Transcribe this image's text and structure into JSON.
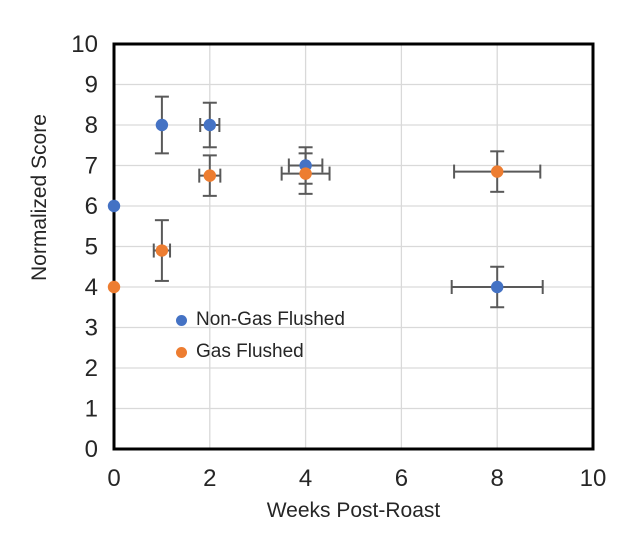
{
  "page": {
    "background": "#ffffff"
  },
  "chart_data": {
    "type": "scatter",
    "title": "",
    "xlabel": "Weeks Post-Roast",
    "ylabel": "Normalized Score",
    "xlim": [
      0,
      10
    ],
    "ylim": [
      0,
      10
    ],
    "xticks": [
      0,
      2,
      4,
      6,
      8,
      10
    ],
    "yticks": [
      0,
      1,
      2,
      3,
      4,
      5,
      6,
      7,
      8,
      9,
      10
    ],
    "grid": true,
    "plot_border": true,
    "legend_position": "inside lower-left",
    "colors": {
      "grid": "#d9d9d9",
      "plot_border": "#000000",
      "error_bar": "#595959",
      "text": "#262626"
    },
    "series": [
      {
        "name": "Non-Gas Flushed",
        "color": "#4472C4",
        "points": [
          {
            "x": 0,
            "y": 6
          },
          {
            "x": 1,
            "y": 8,
            "yerr": 0.7
          },
          {
            "x": 2,
            "y": 8,
            "xerr": 0.2,
            "yerr": 0.55
          },
          {
            "x": 4,
            "y": 7,
            "xerr": 0.35,
            "yerr": 0.45
          },
          {
            "x": 8,
            "y": 4,
            "xerr": 0.95,
            "yerr": 0.5
          }
        ]
      },
      {
        "name": "Gas Flushed",
        "color": "#ED7D31",
        "points": [
          {
            "x": 0,
            "y": 4
          },
          {
            "x": 1,
            "y": 4.9,
            "xerr": 0.17,
            "yerr": 0.75
          },
          {
            "x": 2,
            "y": 6.75,
            "xerr": 0.22,
            "yerr": 0.5
          },
          {
            "x": 4,
            "y": 6.8,
            "xerr": 0.5,
            "yerr": 0.5
          },
          {
            "x": 8,
            "y": 6.85,
            "xerr": 0.9,
            "yerr": 0.5
          }
        ]
      }
    ]
  }
}
